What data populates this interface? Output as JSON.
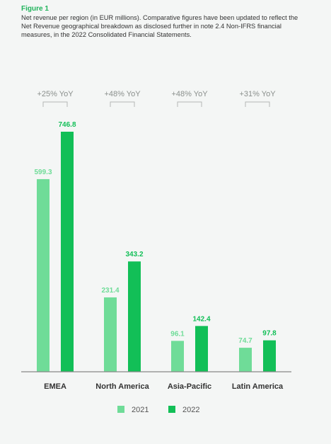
{
  "figure": {
    "label": "Figure 1",
    "caption": "Net revenue per region (in EUR millions). Comparative figures have been updated to reflect the Net Revenue geographical breakdown as disclosed further in note 2.4 Non-IFRS financial measures, in the 2022 Consolidated Financial Statements."
  },
  "colors": {
    "series_2021": "#6fdc98",
    "series_2022": "#12bf57",
    "axis": "#888888",
    "bracket": "#b3b7b5"
  },
  "chart_data": {
    "type": "bar",
    "categories": [
      "EMEA",
      "North America",
      "Asia-Pacific",
      "Latin America"
    ],
    "series": [
      {
        "name": "2021",
        "values": [
          599.3,
          231.4,
          96.1,
          74.7
        ]
      },
      {
        "name": "2022",
        "values": [
          746.8,
          343.2,
          142.4,
          97.8
        ]
      }
    ],
    "annotations": [
      "+25% YoY",
      "+48% YoY",
      "+48% YoY",
      "+31% YoY"
    ],
    "ylim": [
      0,
      746.8
    ],
    "grid": false,
    "legend": "bottom-center",
    "title": "",
    "xlabel": "",
    "ylabel": ""
  }
}
